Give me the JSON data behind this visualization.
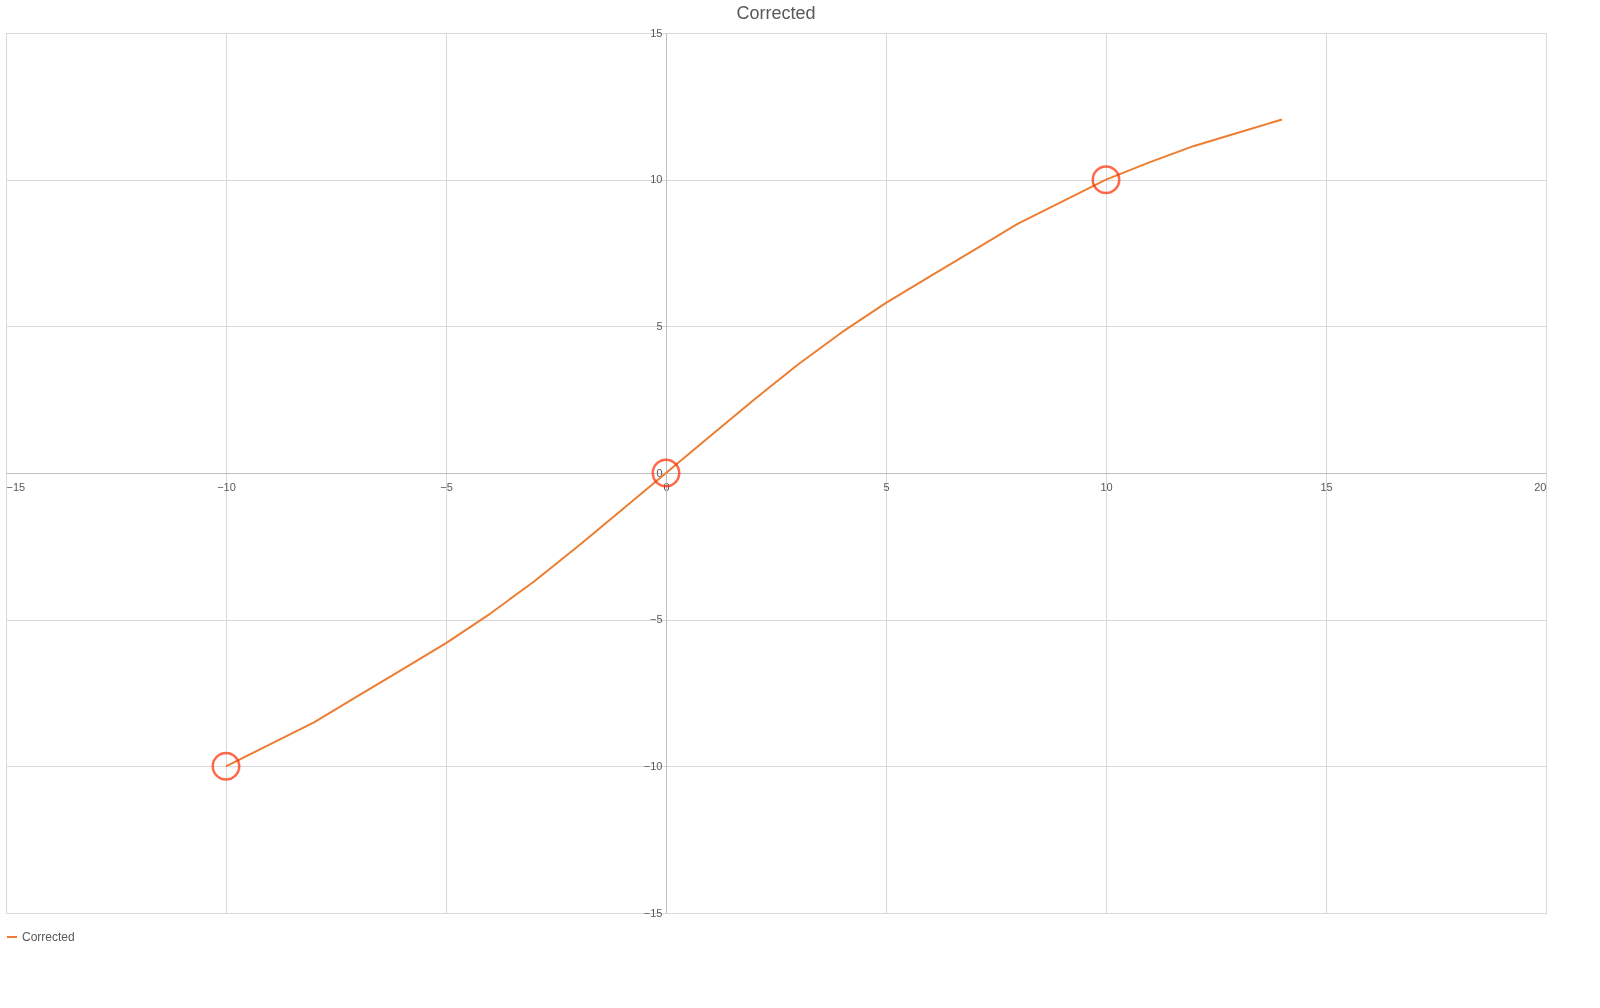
{
  "chart_data": {
    "type": "line",
    "title": "Corrected",
    "series": [
      {
        "name": "Corrected",
        "color": "#ed7d31",
        "x": [
          -10,
          -9,
          -8,
          -7,
          -6,
          -5,
          -4,
          -3,
          -2,
          -1,
          0,
          1,
          2,
          3,
          4,
          5,
          6,
          7,
          8,
          9,
          10,
          11,
          12,
          13,
          14
        ],
        "values": [
          -10,
          -9.25,
          -8.5,
          -7.6,
          -6.7,
          -5.8,
          -4.8,
          -3.7,
          -2.5,
          -1.25,
          0,
          1.25,
          2.5,
          3.7,
          4.8,
          5.8,
          6.7,
          7.6,
          8.5,
          9.25,
          10,
          10.6,
          11.15,
          11.6,
          12.05
        ]
      },
      {
        "type": "scatter",
        "marker": "circle",
        "color": "#ff2a00",
        "x": [
          -10,
          0,
          10
        ],
        "values": [
          -10,
          0,
          10
        ]
      }
    ],
    "xlim": [
      -15,
      20
    ],
    "xticks": [
      -15,
      -10,
      -5,
      0,
      5,
      10,
      15,
      20
    ],
    "ylim": [
      -15,
      15
    ],
    "yticks": [
      -15,
      -10,
      -5,
      0,
      5,
      10,
      15
    ],
    "grid": true,
    "legend": "bottom",
    "line_style": "solid"
  }
}
